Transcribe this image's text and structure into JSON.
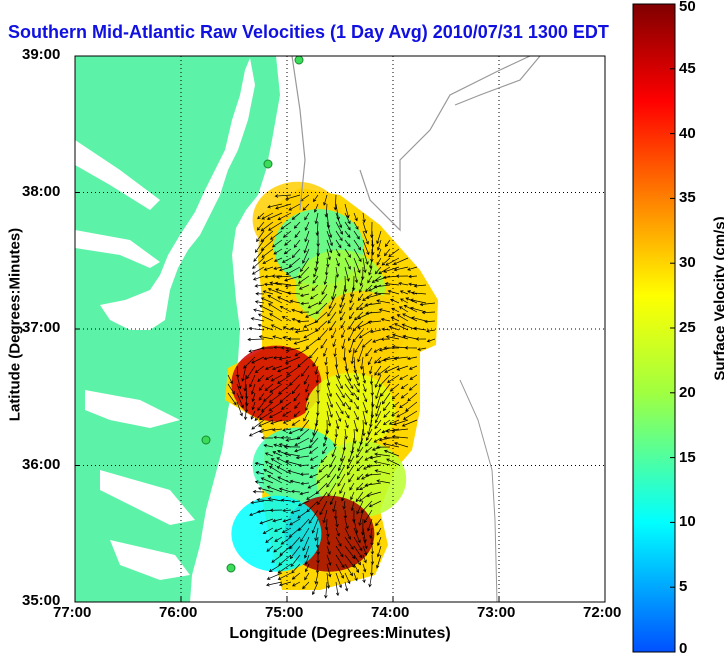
{
  "title": "Southern Mid-Atlantic Raw Velocities (1 Day Avg) 2010/07/31 1300 EDT",
  "xlabel": "Longitude (Degrees:Minutes)",
  "ylabel": "Latitude (Degrees:Minutes)",
  "colorbar": {
    "label": "Surface Velocity (cm/s)",
    "min": 0,
    "max": 50,
    "ticks": [
      "0",
      "5",
      "10",
      "15",
      "20",
      "25",
      "30",
      "35",
      "40",
      "45",
      "50"
    ]
  },
  "axes": {
    "lon_ticks": [
      "77:00",
      "76:00",
      "75:00",
      "74:00",
      "73:00",
      "72:00"
    ],
    "lat_ticks": [
      "39:00",
      "38:00",
      "37:00",
      "36:00",
      "35:00"
    ],
    "lon_range": [
      -77,
      -72
    ],
    "lat_range": [
      35,
      39
    ],
    "grid": true
  },
  "colors": {
    "land": "#5cf2a8",
    "water": "#ffffff",
    "vectors": "#000000",
    "title": "#1010e0"
  },
  "chart_data": {
    "type": "heatmap",
    "title": "Southern Mid-Atlantic Raw Velocities (1 Day Avg) 2010/07/31 1300 EDT",
    "xlabel": "Longitude (Degrees:Minutes)",
    "ylabel": "Latitude (Degrees:Minutes)",
    "colorbar_label": "Surface Velocity (cm/s)",
    "zlim": [
      0,
      50
    ],
    "xlim": [
      -77,
      -72
    ],
    "ylim": [
      35,
      39
    ],
    "regions": [
      {
        "lat": 37.8,
        "lon": -74.9,
        "speed": 30
      },
      {
        "lat": 37.6,
        "lon": -74.7,
        "speed": 15
      },
      {
        "lat": 37.3,
        "lon": -74.5,
        "speed": 20
      },
      {
        "lat": 37.0,
        "lon": -74.3,
        "speed": 30
      },
      {
        "lat": 36.6,
        "lon": -75.1,
        "speed": 45
      },
      {
        "lat": 36.4,
        "lon": -74.4,
        "speed": 25
      },
      {
        "lat": 36.0,
        "lon": -74.9,
        "speed": 14
      },
      {
        "lat": 35.9,
        "lon": -74.3,
        "speed": 22
      },
      {
        "lat": 35.5,
        "lon": -74.6,
        "speed": 48
      },
      {
        "lat": 35.5,
        "lon": -75.1,
        "speed": 10
      }
    ]
  }
}
